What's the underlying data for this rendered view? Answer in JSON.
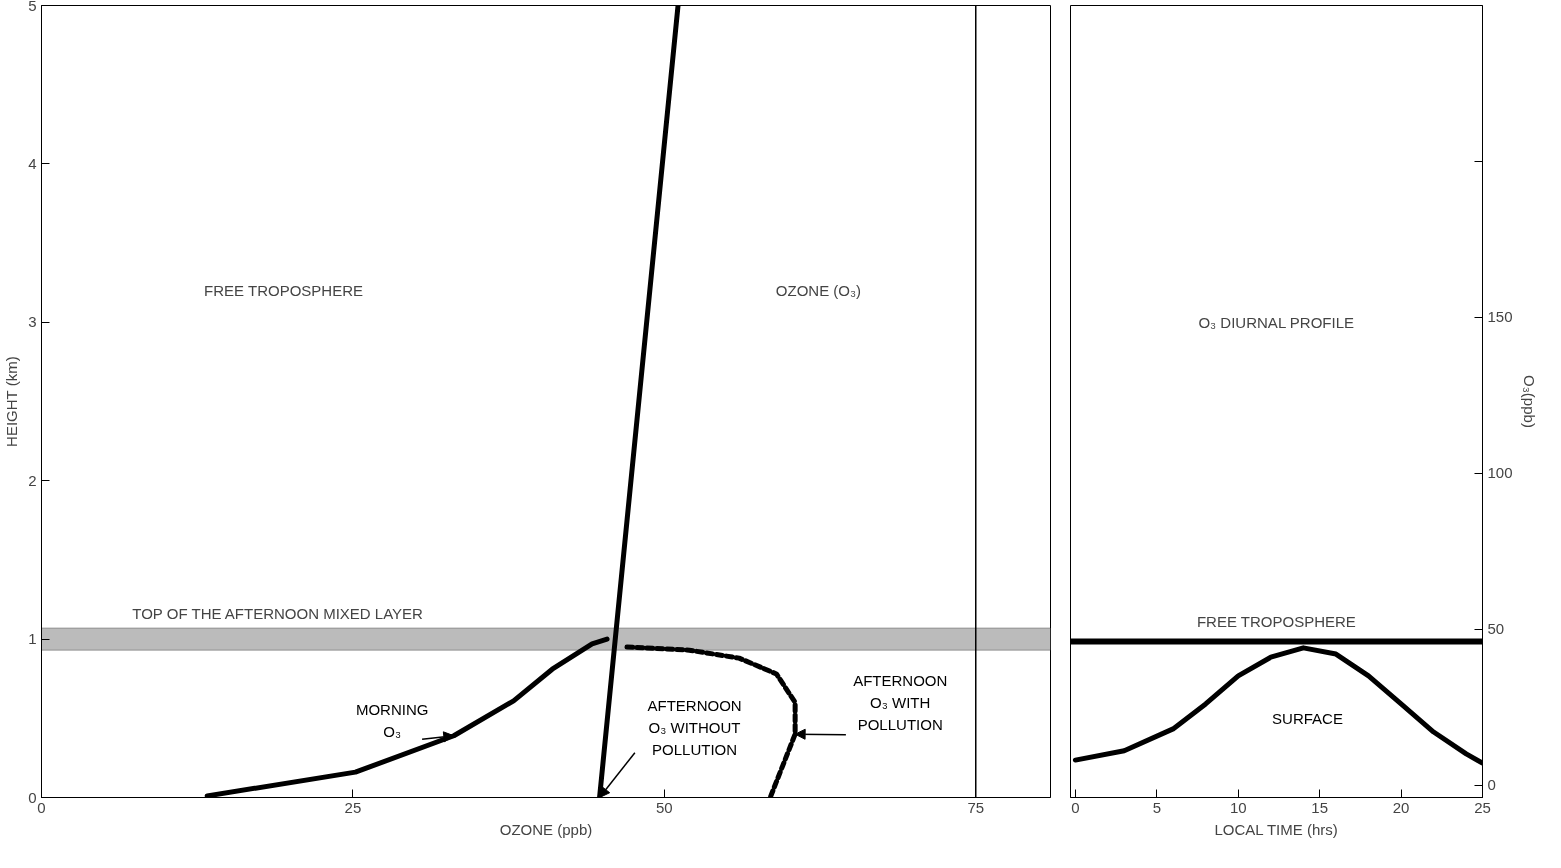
{
  "chart_data": [
    {
      "type": "line",
      "xlabel": "OZONE (ppb)",
      "ylabel": "HEIGHT (km)",
      "xlim": [
        0,
        81
      ],
      "xticks": [
        0,
        25,
        50,
        75
      ],
      "ylim": [
        0,
        5
      ],
      "yticks": [
        0,
        1,
        2,
        3,
        4,
        5
      ],
      "grid": false,
      "series": [
        {
          "name": "AFTERNOON\nO₃ WITHOUT\nPOLLUTION",
          "color": "#000000",
          "line_style": "solid",
          "x": [
            44.8,
            51.1
          ],
          "values": [
            0,
            5
          ]
        },
        {
          "name": "MORNING\nO₃",
          "color": "#000000",
          "line_style": "solid",
          "x": [
            13.3,
            25.2,
            33.1,
            37.9,
            41,
            44.2,
            45.4
          ],
          "values": [
            0.01,
            0.16,
            0.39,
            0.61,
            0.81,
            0.97,
            1.0
          ]
        },
        {
          "name": "AFTERNOON\nO₃ WITH\nPOLLUTION",
          "color": "#000000",
          "line_style": "dashed",
          "x": [
            47,
            52,
            56,
            59,
            60.5,
            60.5,
            59.5,
            58.5
          ],
          "values": [
            0.95,
            0.93,
            0.88,
            0.78,
            0.6,
            0.4,
            0.2,
            0
          ]
        }
      ],
      "ref_lines": [
        {
          "axis": "x",
          "value": 75
        }
      ],
      "bands": [
        {
          "axis": "y",
          "from": 0.93,
          "to": 1.07,
          "label": "TOP OF THE AFTERNOON MIXED LAYER",
          "color": "#bbbbbb"
        }
      ],
      "annotations": [
        "FREE TROPOSPHERE",
        "OZONE (O₃)"
      ]
    },
    {
      "type": "line",
      "xlabel": "LOCAL TIME (hrs)",
      "ylabel": "O₃(ppb)",
      "xlim": [
        -0.3,
        25
      ],
      "xticks": [
        0,
        5,
        10,
        15,
        20,
        25
      ],
      "ylim": [
        -4,
        250
      ],
      "yticks": [
        0,
        50,
        100,
        150,
        {
          "value": 200,
          "label": null
        }
      ],
      "grid": false,
      "series": [
        {
          "name": "SURFACE",
          "color": "#000000",
          "line_style": "solid",
          "x": [
            0,
            3,
            6,
            8,
            10,
            12,
            14,
            16,
            18,
            20,
            22,
            24,
            25
          ],
          "values": [
            8,
            11,
            18,
            26,
            35,
            41,
            44,
            42,
            35,
            26,
            17,
            10,
            7
          ]
        }
      ],
      "ref_lines": [
        {
          "axis": "y",
          "value": 46,
          "label": "FREE TROPOSPHERE",
          "color": "#000000"
        }
      ],
      "annotations": [
        "O₃ DIURNAL PROFILE"
      ]
    }
  ]
}
